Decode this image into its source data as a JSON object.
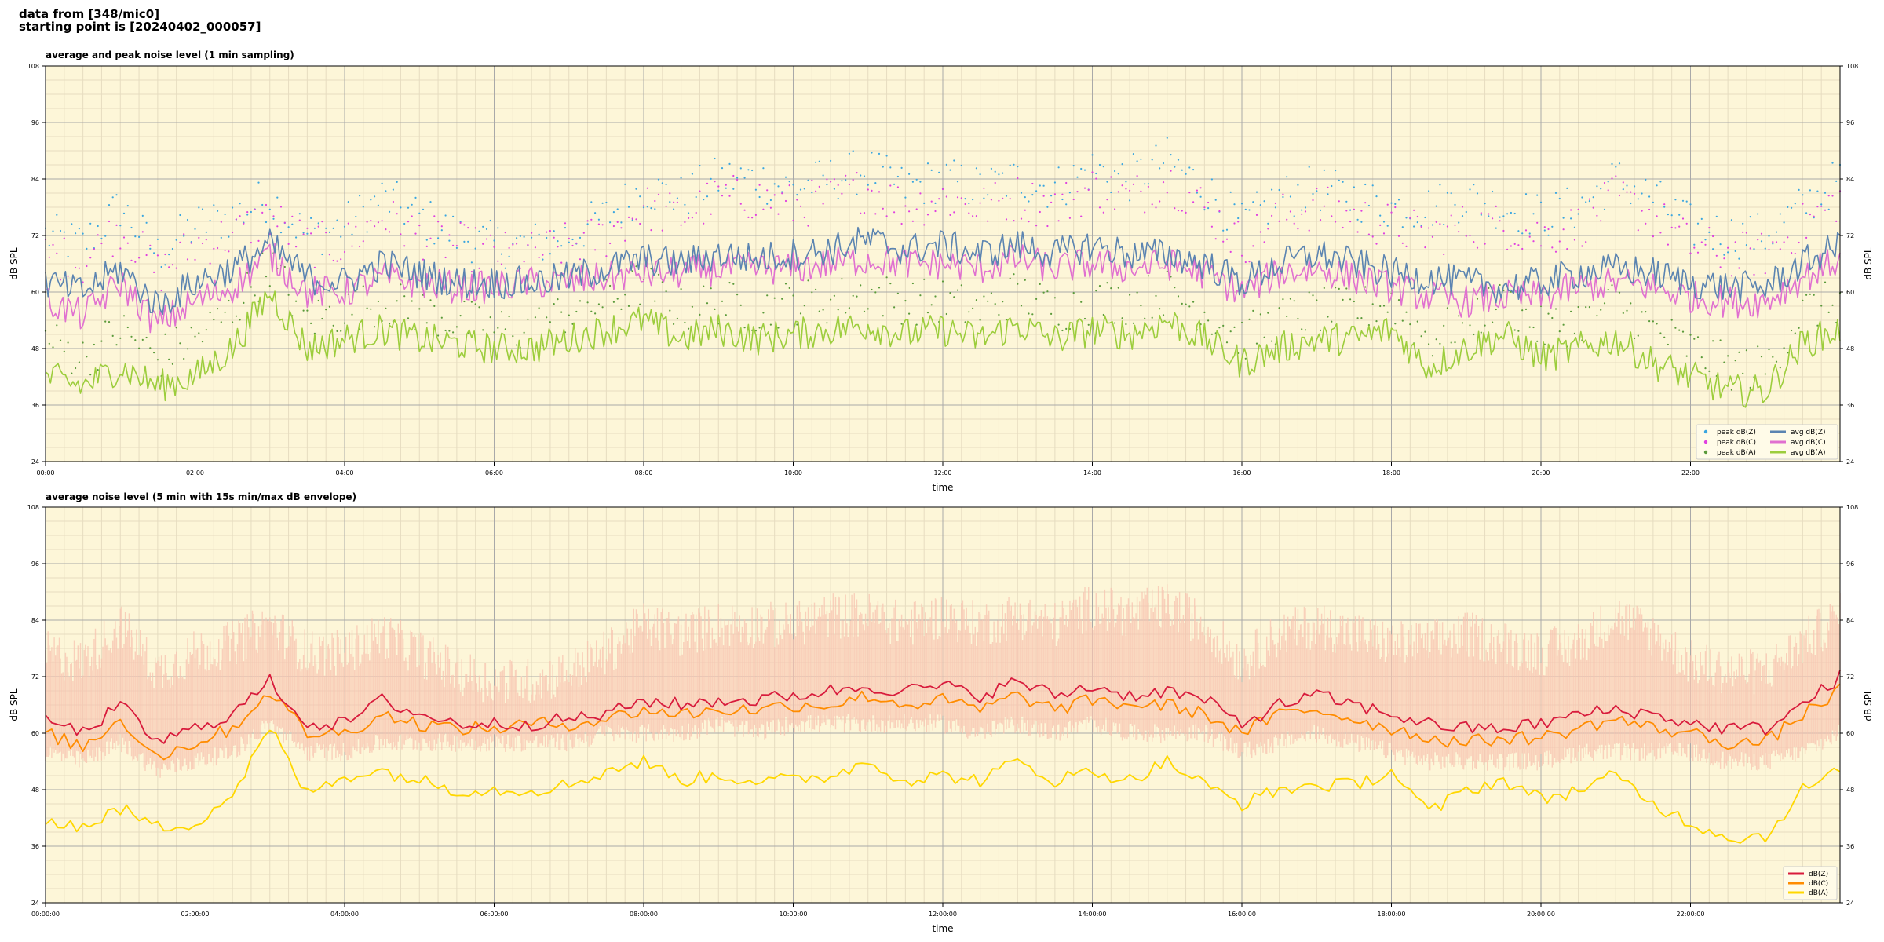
{
  "header": {
    "line1": "data from [348/mic0]",
    "line2": "starting point is [20240402_000057]"
  },
  "colors": {
    "plot_bg": "#fdf6d8",
    "grid_major": "#a9a9a9",
    "grid_minor": "#e6dcc0",
    "peak_z": "#3aa6e0",
    "peak_c": "#e040e0",
    "peak_a": "#5a9a3a",
    "avg_z": "#5b84b1",
    "avg_c": "#e070d0",
    "avg_a": "#9ccd3c",
    "dbz": "#d81b3c",
    "dbc": "#ff8c00",
    "dba": "#ffd700",
    "envelope": "#f7c3b0"
  },
  "chart_data": [
    {
      "type": "line",
      "title": "average and peak noise level (1 min sampling)",
      "xlabel": "time",
      "ylabel": "dB SPL",
      "ylim": [
        24,
        108
      ],
      "yticks": [
        24,
        36,
        48,
        60,
        72,
        84,
        96,
        108
      ],
      "xlim_hours": [
        0,
        24
      ],
      "xtick_labels": [
        "00:00",
        "02:00",
        "04:00",
        "06:00",
        "08:00",
        "10:00",
        "12:00",
        "14:00",
        "16:00",
        "18:00",
        "20:00",
        "22:00"
      ],
      "grid": true,
      "legend_position": "bottom-right",
      "legend": [
        "peak dB(Z)",
        "peak dB(C)",
        "peak dB(A)",
        "avg dB(Z)",
        "avg dB(C)",
        "avg dB(A)"
      ],
      "x_hours": [
        0,
        0.5,
        1,
        1.5,
        2,
        2.5,
        3,
        3.5,
        4,
        4.5,
        5,
        5.5,
        6,
        6.5,
        7,
        7.5,
        8,
        8.5,
        9,
        9.5,
        10,
        10.5,
        11,
        11.5,
        12,
        12.5,
        13,
        13.5,
        14,
        14.5,
        15,
        15.5,
        16,
        16.5,
        17,
        17.5,
        18,
        18.5,
        19,
        19.5,
        20,
        20.5,
        21,
        21.5,
        22,
        22.5,
        23,
        23.5,
        24
      ],
      "series": [
        {
          "name": "avg dB(Z)",
          "values": [
            62,
            60,
            65,
            57,
            62,
            65,
            70,
            63,
            62,
            66,
            64,
            62,
            62,
            62,
            63,
            65,
            67,
            66,
            68,
            67,
            68,
            69,
            71,
            69,
            70,
            68,
            70,
            68,
            70,
            68,
            68,
            66,
            62,
            66,
            68,
            66,
            64,
            63,
            62,
            61,
            62,
            64,
            65,
            64,
            62,
            61,
            61,
            66,
            70
          ]
        },
        {
          "name": "avg dB(C)",
          "values": [
            58,
            55,
            62,
            53,
            58,
            61,
            68,
            60,
            60,
            63,
            62,
            61,
            61,
            62,
            62,
            63,
            64,
            64,
            65,
            65,
            65,
            66,
            67,
            66,
            66,
            65,
            67,
            65,
            66,
            65,
            66,
            64,
            60,
            64,
            65,
            63,
            61,
            59,
            58,
            59,
            59,
            61,
            62,
            61,
            59,
            58,
            58,
            63,
            67
          ]
        },
        {
          "name": "avg dB(A)",
          "values": [
            42,
            40,
            44,
            40,
            42,
            48,
            60,
            48,
            50,
            52,
            50,
            49,
            48,
            48,
            50,
            52,
            54,
            50,
            52,
            50,
            51,
            52,
            53,
            51,
            52,
            50,
            53,
            50,
            52,
            51,
            54,
            50,
            45,
            48,
            50,
            50,
            52,
            44,
            48,
            51,
            46,
            48,
            50,
            45,
            42,
            39,
            39,
            49,
            52
          ]
        },
        {
          "name": "peak dB(Z)",
          "values": [
            72,
            70,
            78,
            68,
            74,
            76,
            80,
            72,
            74,
            80,
            76,
            72,
            70,
            70,
            72,
            76,
            82,
            80,
            84,
            84,
            82,
            84,
            86,
            82,
            84,
            82,
            84,
            82,
            86,
            84,
            88,
            82,
            74,
            80,
            82,
            80,
            78,
            78,
            80,
            78,
            76,
            78,
            84,
            80,
            74,
            72,
            72,
            78,
            84
          ]
        },
        {
          "name": "peak dB(C)",
          "values": [
            68,
            66,
            74,
            64,
            70,
            72,
            76,
            70,
            70,
            76,
            72,
            70,
            68,
            68,
            70,
            72,
            78,
            76,
            80,
            80,
            78,
            80,
            82,
            78,
            80,
            78,
            80,
            78,
            82,
            80,
            84,
            78,
            70,
            76,
            78,
            76,
            74,
            72,
            74,
            74,
            72,
            74,
            80,
            76,
            70,
            68,
            68,
            74,
            80
          ]
        },
        {
          "name": "peak dB(A)",
          "values": [
            50,
            46,
            52,
            46,
            50,
            56,
            66,
            54,
            56,
            58,
            56,
            54,
            52,
            52,
            56,
            58,
            62,
            56,
            58,
            56,
            58,
            58,
            60,
            58,
            58,
            56,
            60,
            56,
            58,
            58,
            60,
            56,
            50,
            54,
            56,
            56,
            58,
            50,
            54,
            58,
            52,
            54,
            58,
            52,
            48,
            44,
            44,
            56,
            58
          ]
        }
      ]
    },
    {
      "type": "line",
      "title": "average noise level (5 min with 15s min/max dB envelope)",
      "xlabel": "time",
      "ylabel": "dB SPL",
      "ylim": [
        24,
        108
      ],
      "yticks": [
        24,
        36,
        48,
        60,
        72,
        84,
        96,
        108
      ],
      "xlim_hours": [
        0,
        24
      ],
      "xtick_labels": [
        "00:00:00",
        "02:00:00",
        "04:00:00",
        "06:00:00",
        "08:00:00",
        "10:00:00",
        "12:00:00",
        "14:00:00",
        "16:00:00",
        "18:00:00",
        "20:00:00",
        "22:00:00"
      ],
      "grid": true,
      "legend_position": "bottom-right",
      "legend": [
        "dB(Z)",
        "dB(C)",
        "dB(A)"
      ],
      "x_hours": [
        0,
        0.5,
        1,
        1.5,
        2,
        2.5,
        3,
        3.5,
        4,
        4.5,
        5,
        5.5,
        6,
        6.5,
        7,
        7.5,
        8,
        8.5,
        9,
        9.5,
        10,
        10.5,
        11,
        11.5,
        12,
        12.5,
        13,
        13.5,
        14,
        14.5,
        15,
        15.5,
        16,
        16.5,
        17,
        17.5,
        18,
        18.5,
        19,
        19.5,
        20,
        20.5,
        21,
        21.5,
        22,
        22.5,
        23,
        23.5,
        24
      ],
      "series": [
        {
          "name": "dB(Z)",
          "values": [
            63,
            60,
            66,
            58,
            61,
            64,
            71,
            62,
            62,
            67,
            64,
            62,
            62,
            62,
            63,
            64,
            67,
            66,
            67,
            67,
            68,
            69,
            70,
            69,
            70,
            68,
            71,
            68,
            70,
            68,
            69,
            67,
            62,
            66,
            68,
            66,
            64,
            62,
            61,
            61,
            62,
            64,
            65,
            64,
            62,
            61,
            61,
            66,
            72
          ]
        },
        {
          "name": "dB(C)",
          "values": [
            60,
            57,
            63,
            55,
            58,
            61,
            69,
            60,
            60,
            64,
            62,
            61,
            61,
            62,
            62,
            63,
            65,
            64,
            65,
            65,
            66,
            66,
            68,
            66,
            67,
            65,
            68,
            65,
            67,
            66,
            66,
            64,
            60,
            64,
            65,
            63,
            61,
            59,
            58,
            59,
            59,
            61,
            63,
            61,
            60,
            58,
            58,
            64,
            69
          ]
        },
        {
          "name": "dB(A)",
          "values": [
            42,
            40,
            44,
            40,
            41,
            47,
            61,
            47,
            51,
            52,
            50,
            48,
            48,
            48,
            49,
            52,
            54,
            50,
            51,
            50,
            50,
            51,
            54,
            50,
            51,
            50,
            54,
            50,
            52,
            50,
            54,
            49,
            45,
            48,
            49,
            49,
            52,
            43,
            48,
            50,
            46,
            48,
            51,
            45,
            41,
            38,
            38,
            48,
            52
          ]
        },
        {
          "name": "envelope max",
          "values": [
            78,
            76,
            84,
            74,
            78,
            80,
            84,
            78,
            78,
            82,
            78,
            74,
            72,
            72,
            74,
            78,
            84,
            82,
            84,
            84,
            84,
            86,
            86,
            84,
            86,
            84,
            86,
            84,
            88,
            86,
            88,
            84,
            76,
            82,
            84,
            82,
            80,
            80,
            82,
            80,
            78,
            80,
            86,
            82,
            76,
            74,
            74,
            80,
            86
          ]
        },
        {
          "name": "envelope min",
          "values": [
            56,
            54,
            58,
            52,
            54,
            56,
            62,
            56,
            56,
            58,
            58,
            58,
            58,
            58,
            58,
            60,
            60,
            60,
            62,
            60,
            62,
            62,
            62,
            62,
            62,
            60,
            62,
            60,
            62,
            60,
            60,
            60,
            56,
            58,
            60,
            58,
            56,
            54,
            54,
            54,
            54,
            56,
            56,
            56,
            56,
            54,
            54,
            56,
            60
          ]
        }
      ]
    }
  ]
}
